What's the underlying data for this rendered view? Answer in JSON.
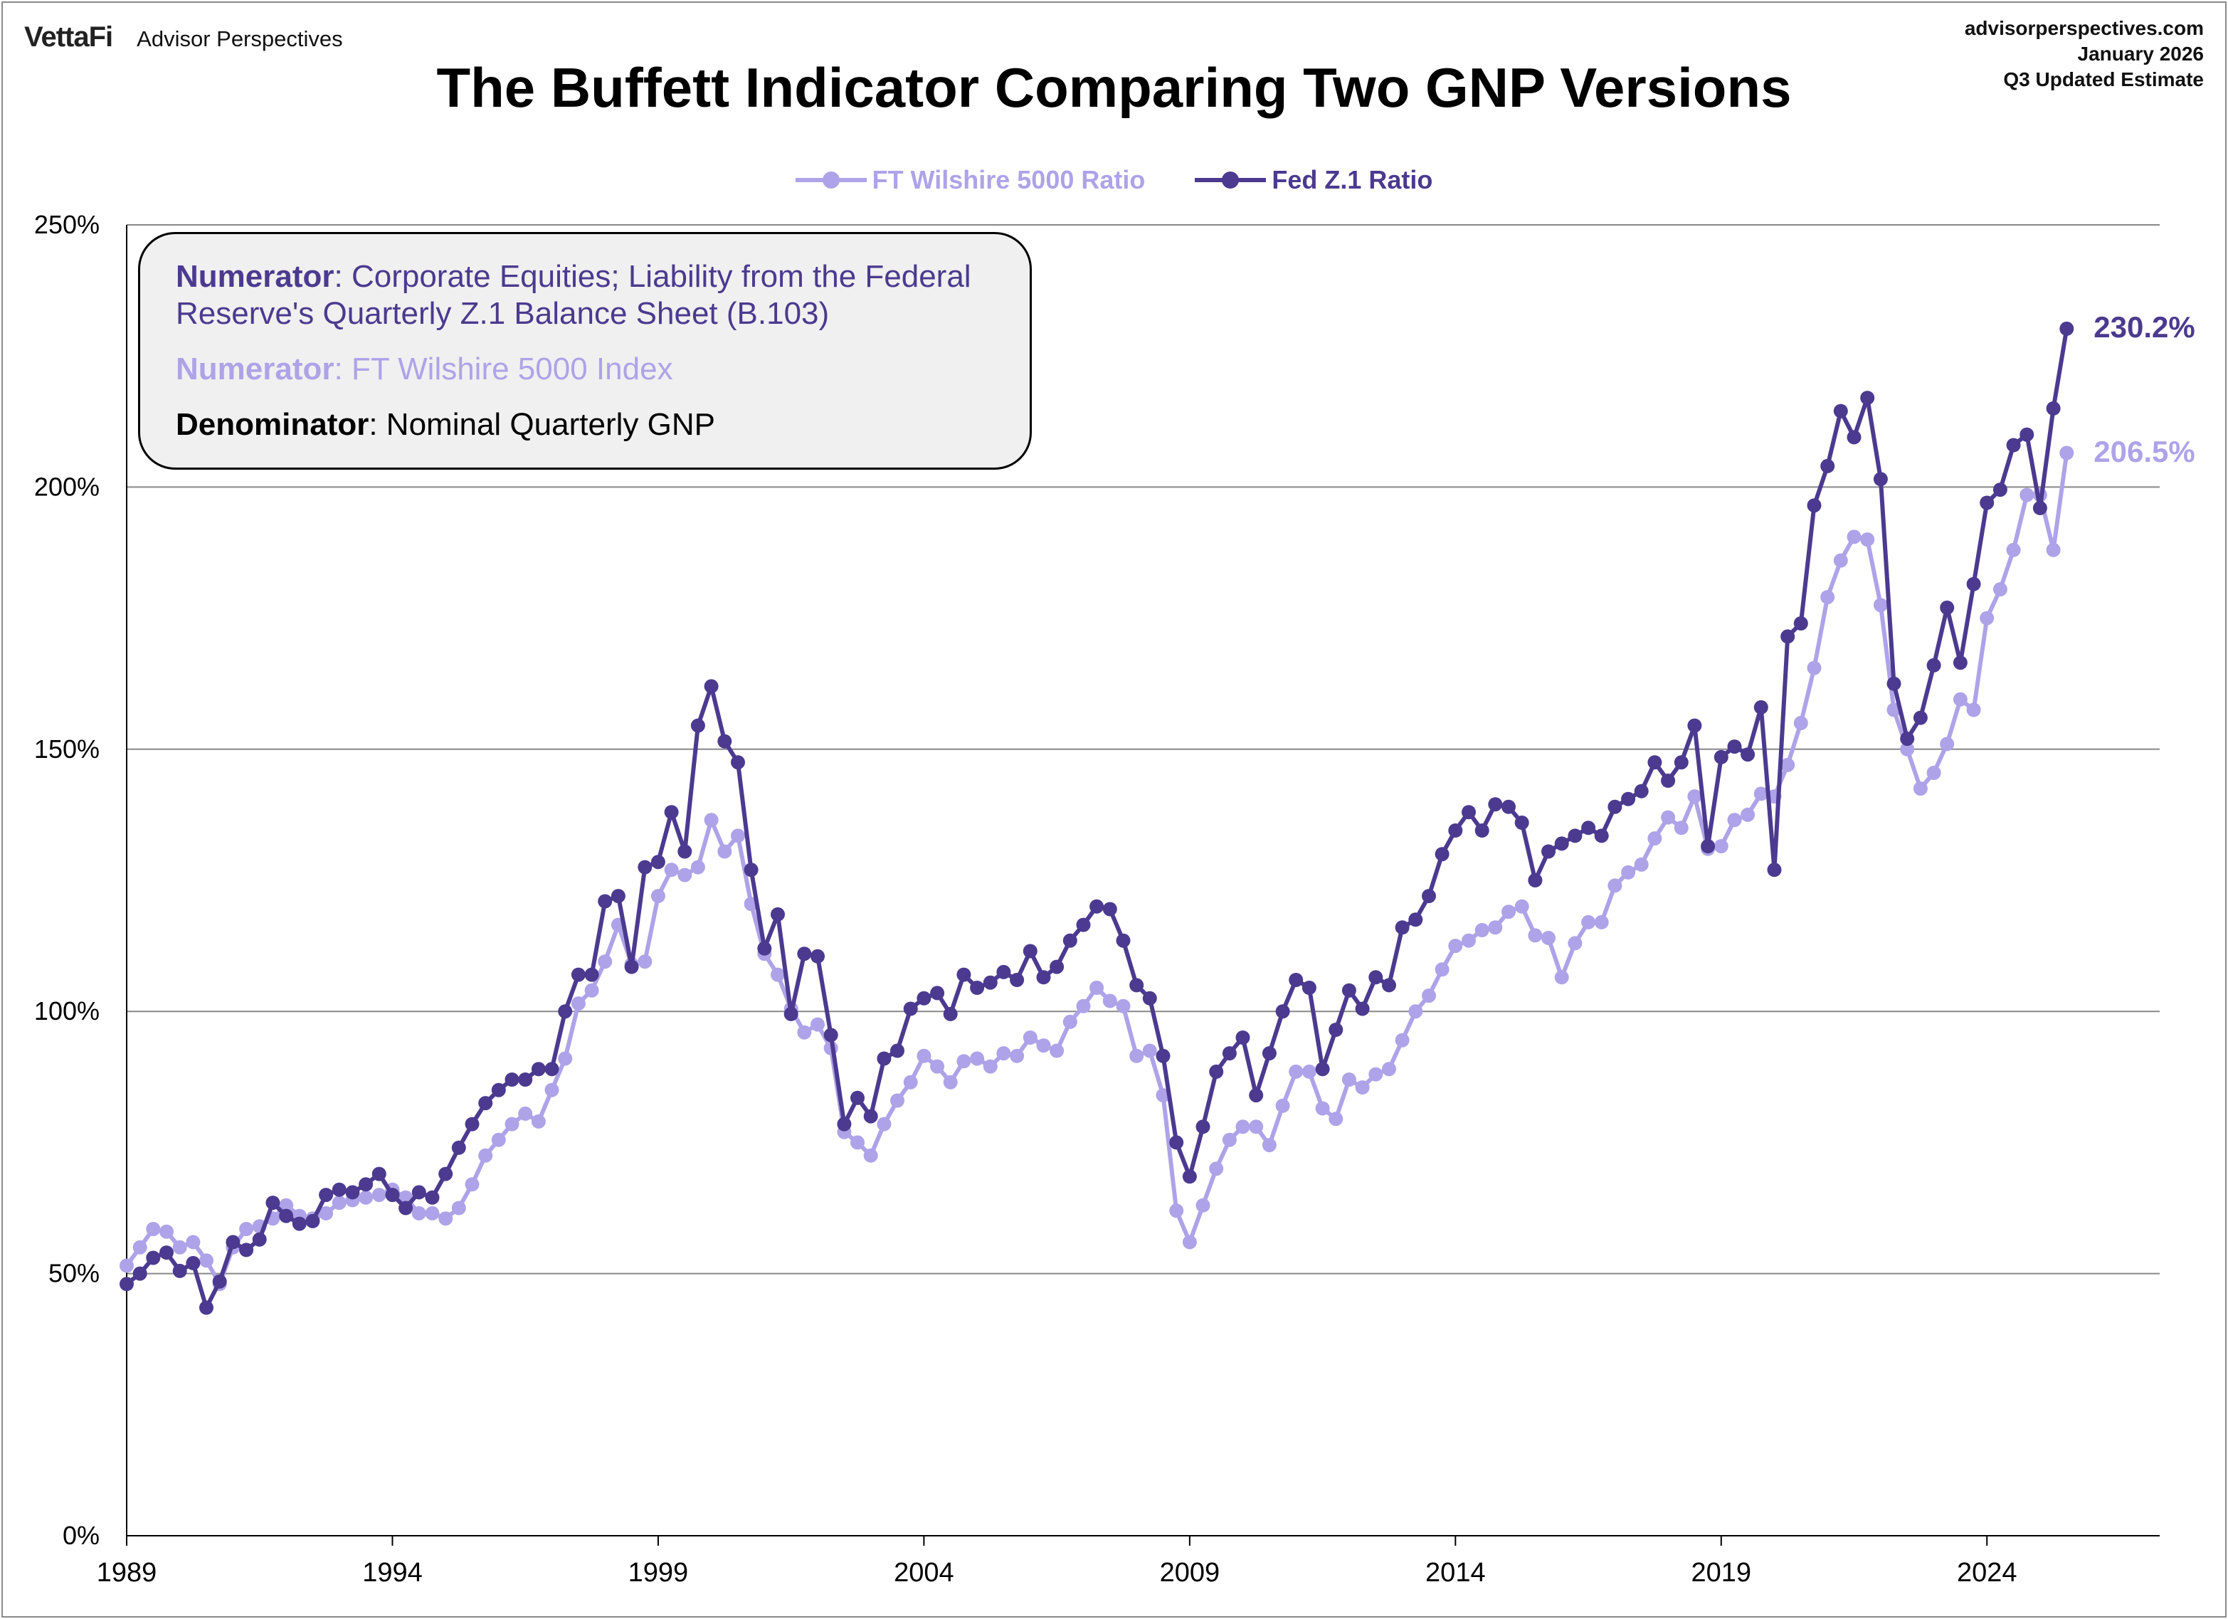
{
  "header": {
    "brand_logo": "VettaFi",
    "brand_name": "Advisor Perspectives",
    "source_line1": "advisorperspectives.com",
    "source_line2": "January 2026",
    "source_line3": "Q3 Updated Estimate",
    "title": "The Buffett Indicator Comparing Two GNP Versions"
  },
  "note": {
    "line1_bold": "Numerator",
    "line1_text": ": Corporate Equities; Liability from the Federal Reserve's Quarterly Z.1 Balance Sheet (B.103)",
    "line2_bold": "Numerator",
    "line2_text": ": FT Wilshire 5000 Index",
    "line3_bold": "Denominator",
    "line3_text": ": Nominal Quarterly GNP"
  },
  "end_labels": {
    "fed": "230.2%",
    "wilshire": "206.5%"
  },
  "colors": {
    "fed": "#4b3a8f",
    "wilshire": "#aea3e8",
    "grid": "#888888",
    "axis": "#000000"
  },
  "chart_data": {
    "type": "line",
    "title": "The Buffett Indicator Comparing Two GNP Versions",
    "xlabel": "",
    "ylabel": "",
    "x_start": "1989 Q1",
    "x_step": "quarter",
    "xlim": [
      1989,
      2027.25
    ],
    "ylim": [
      0,
      250
    ],
    "y_unit": "%",
    "yticks": [
      0,
      50,
      100,
      150,
      200,
      250
    ],
    "ytick_labels": [
      "0%",
      "50%",
      "100%",
      "150%",
      "200%",
      "250%"
    ],
    "xticks": [
      1989,
      1994,
      1999,
      2004,
      2009,
      2014,
      2019,
      2024
    ],
    "xtick_labels": [
      "1989",
      "1994",
      "1999",
      "2004",
      "2009",
      "2014",
      "2019",
      "2024"
    ],
    "grid": "horizontal",
    "legend_position": "top",
    "series": [
      {
        "name": "FT Wilshire 5000 Ratio",
        "color": "#aea3e8",
        "values": [
          51.5,
          55,
          58.5,
          58,
          55,
          56,
          52.5,
          48,
          55,
          58.5,
          59,
          60.5,
          63,
          61,
          60.5,
          61.5,
          63.5,
          64,
          64.5,
          65,
          66,
          64.5,
          61.5,
          61.5,
          60.5,
          62.5,
          67,
          72.5,
          75.5,
          78.5,
          80.5,
          79,
          85,
          91,
          101.5,
          104,
          109.5,
          116.5,
          109,
          109.5,
          122,
          127,
          126,
          127.5,
          136.5,
          130.5,
          133.5,
          120.5,
          111,
          107,
          100.5,
          96,
          97.5,
          93,
          77,
          75,
          72.5,
          78.5,
          83,
          86.5,
          91.5,
          89.5,
          86.5,
          90.5,
          91,
          89.5,
          92,
          91.5,
          95,
          93.5,
          92.5,
          98,
          101,
          104.5,
          102,
          101,
          91.5,
          92.5,
          84,
          62,
          56,
          63,
          70,
          75.5,
          78,
          78,
          74.5,
          82,
          88.5,
          88.5,
          81.5,
          79.5,
          87,
          85.5,
          88,
          89,
          94.5,
          100,
          103,
          108,
          112.5,
          113.5,
          115.5,
          116,
          119,
          120,
          114.5,
          114,
          106.5,
          113,
          117,
          117,
          124,
          126.5,
          128,
          133,
          137,
          135,
          141,
          131,
          131.5,
          136.5,
          137.5,
          141.5,
          141,
          147,
          155,
          165.5,
          179,
          186,
          190.5,
          190,
          177.5,
          157.5,
          150,
          142.5,
          145.5,
          151,
          159.5,
          157.5,
          175,
          180.5,
          188,
          198.5,
          198.5,
          188,
          206.5
        ]
      },
      {
        "name": "Fed Z.1 Ratio",
        "color": "#4b3a8f",
        "values": [
          48,
          50,
          53,
          54,
          50.5,
          52,
          43.5,
          48.5,
          56,
          54.5,
          56.5,
          63.5,
          61,
          59.5,
          60,
          65,
          66,
          65.5,
          67,
          69,
          65,
          62.5,
          65.5,
          64.5,
          69,
          74,
          78.5,
          82.5,
          85,
          87,
          87,
          89,
          89,
          100,
          107,
          107,
          121,
          122,
          108.5,
          127.5,
          128.5,
          138,
          130.5,
          154.5,
          162,
          151.5,
          147.5,
          127,
          112,
          118.5,
          99.5,
          111,
          110.5,
          95.5,
          78.5,
          83.5,
          80,
          91,
          92.5,
          100.5,
          102.5,
          103.5,
          99.5,
          107,
          104.5,
          105.5,
          107.5,
          106,
          111.5,
          106.5,
          108.5,
          113.5,
          116.5,
          120,
          119.5,
          113.5,
          105,
          102.5,
          91.5,
          75,
          68.5,
          78,
          88.5,
          92,
          95,
          84,
          92,
          100,
          106,
          104.5,
          89,
          96.5,
          104,
          100.5,
          106.5,
          105,
          116,
          117.5,
          122,
          130,
          134.5,
          138,
          134.5,
          139.5,
          139,
          136,
          125,
          130.5,
          132,
          133.5,
          135,
          133.5,
          139,
          140.5,
          142,
          147.5,
          144,
          147.5,
          154.5,
          131.5,
          148.5,
          150.5,
          149,
          158,
          127,
          171.5,
          174,
          196.5,
          204,
          214.5,
          209.5,
          217,
          201.5,
          162.5,
          152,
          156,
          166,
          177,
          166.5,
          181.5,
          197,
          199.5,
          208,
          210,
          196,
          215,
          230.2
        ]
      }
    ]
  }
}
